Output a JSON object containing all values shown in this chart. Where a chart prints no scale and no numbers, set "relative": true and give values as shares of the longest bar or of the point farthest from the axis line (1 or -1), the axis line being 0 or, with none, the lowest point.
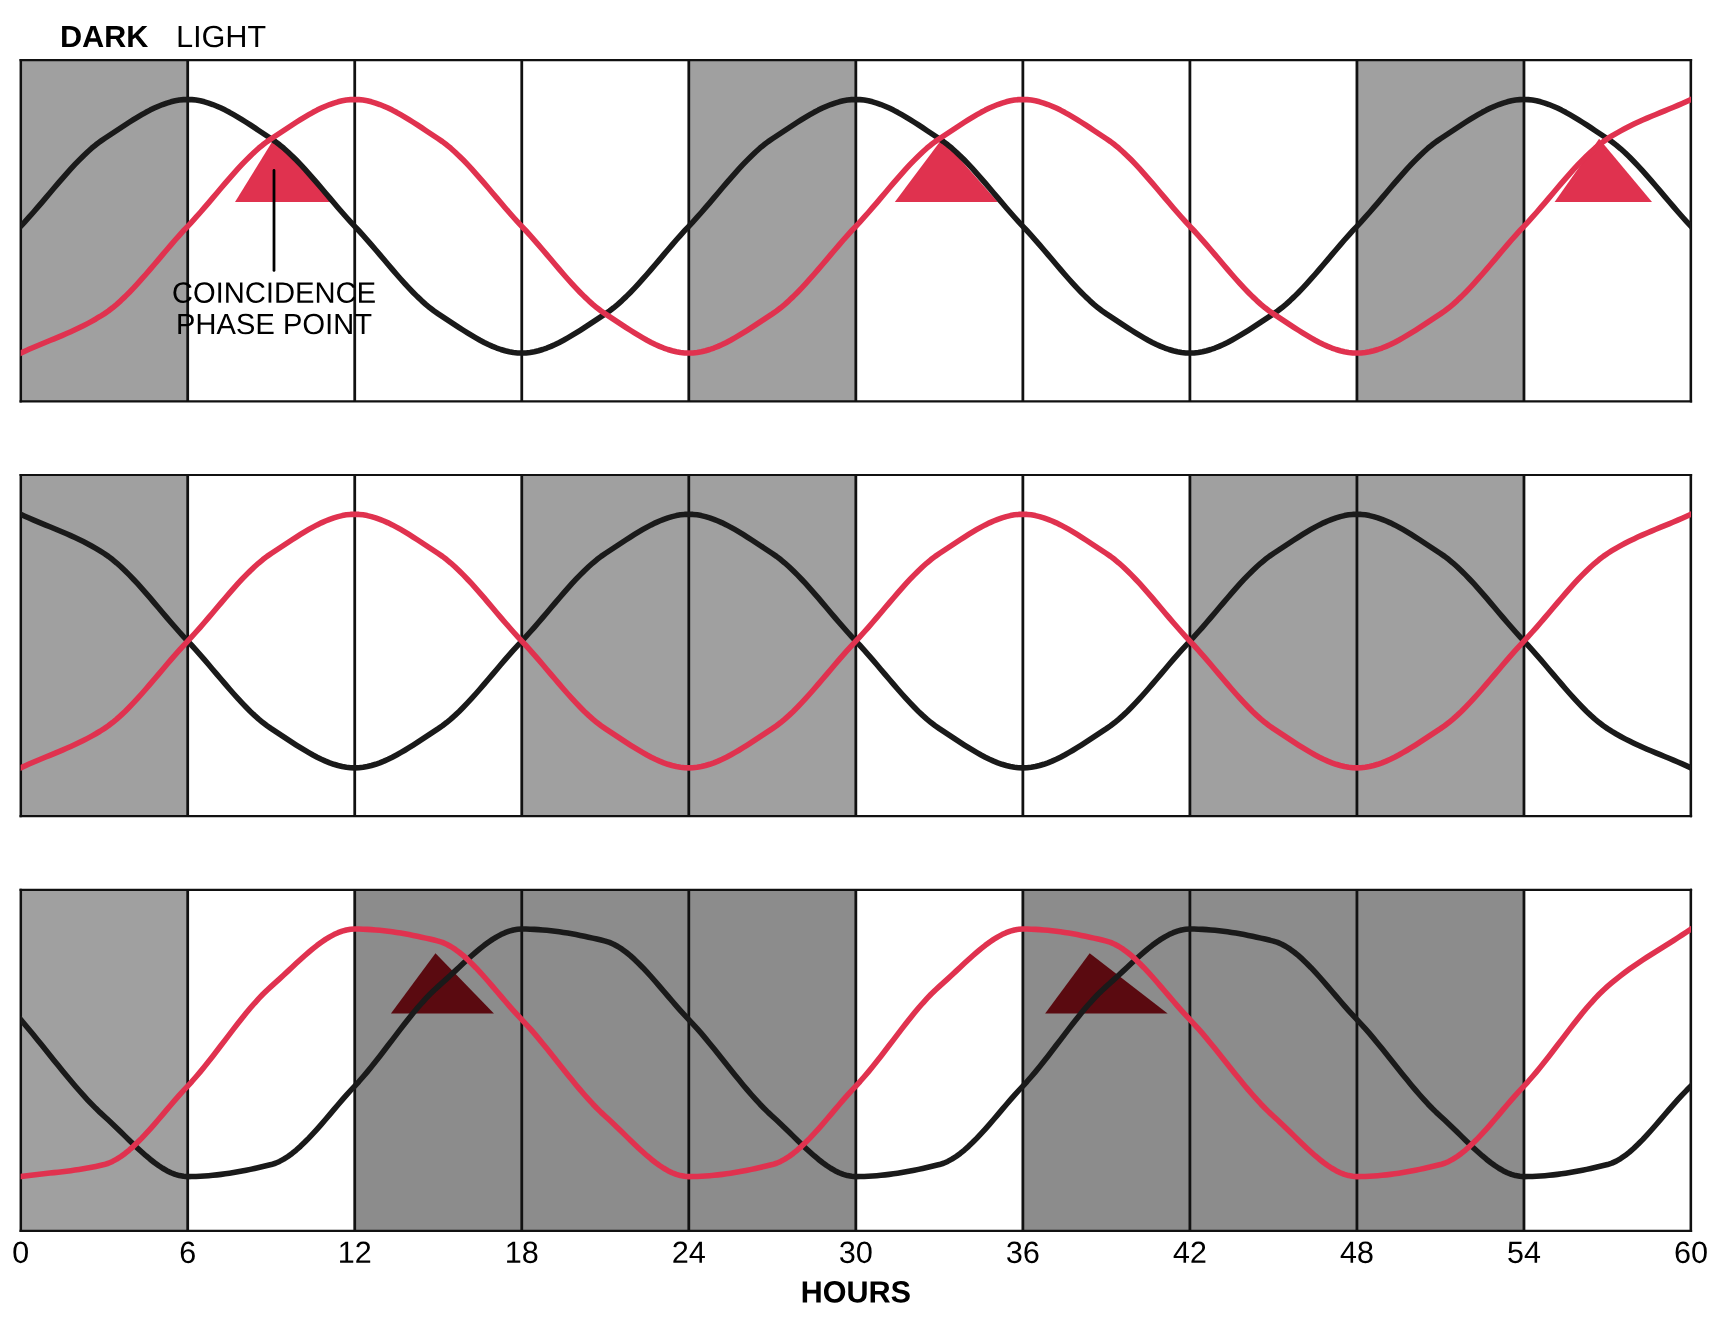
{
  "chart_data": [
    {
      "type": "line",
      "relative": true,
      "xlim": [
        0,
        60
      ],
      "xticks": [
        0,
        6,
        12,
        18,
        24,
        30,
        36,
        42,
        48,
        54,
        60
      ],
      "tick_labels": false,
      "grid": "x",
      "annotations": [
        "LIGHT",
        "COINCIDENCE\nPHASE POINT"
      ],
      "bands": [
        {
          "axis": "x",
          "from": 0,
          "to": 6,
          "label": "DARK",
          "color": "#a0a0a0"
        },
        {
          "axis": "x",
          "from": 24,
          "to": 30,
          "color": "#a0a0a0"
        },
        {
          "axis": "x",
          "from": 48,
          "to": 54,
          "color": "#a0a0a0"
        }
      ],
      "x": [
        0,
        3,
        6,
        9,
        12,
        15,
        18,
        21,
        24,
        27,
        30,
        33,
        36,
        39,
        42,
        45,
        48,
        51,
        54,
        57,
        60
      ],
      "series": [
        {
          "color": "#1a1a1a",
          "values": [
            0.58,
            0.87,
            1,
            0.87,
            0.58,
            0.29,
            0.16,
            0.29,
            0.58,
            0.87,
            1,
            0.87,
            0.58,
            0.29,
            0.16,
            0.29,
            0.58,
            0.87,
            1,
            0.87,
            0.58
          ]
        },
        {
          "color": "#e0324f",
          "values": [
            0.16,
            0.29,
            0.58,
            0.87,
            1,
            0.87,
            0.58,
            0.29,
            0.16,
            0.29,
            0.58,
            0.87,
            1,
            0.87,
            0.58,
            0.29,
            0.16,
            0.29,
            0.58,
            0.87,
            1
          ]
        },
        {
          "type": "area",
          "color": "#e0324f",
          "x": [
            7.7,
            9.1,
            11.2,
            7.7
          ],
          "values": [
            0.66,
            0.87,
            0.66,
            0.66
          ]
        },
        {
          "type": "area",
          "color": "#e0324f",
          "x": [
            31.4,
            33.1,
            35.1,
            31.4
          ],
          "values": [
            0.66,
            0.87,
            0.66,
            0.66
          ]
        },
        {
          "type": "area",
          "color": "#e0324f",
          "x": [
            55.1,
            56.7,
            58.6,
            55.1
          ],
          "values": [
            0.66,
            0.87,
            0.66,
            0.66
          ]
        }
      ]
    },
    {
      "type": "line",
      "relative": true,
      "xlim": [
        0,
        60
      ],
      "xticks": [
        0,
        6,
        12,
        18,
        24,
        30,
        36,
        42,
        48,
        54,
        60
      ],
      "tick_labels": false,
      "grid": "x",
      "bands": [
        {
          "axis": "x",
          "from": 0,
          "to": 6,
          "color": "#a0a0a0"
        },
        {
          "axis": "x",
          "from": 18,
          "to": 30,
          "color": "#a0a0a0"
        },
        {
          "axis": "x",
          "from": 42,
          "to": 54,
          "color": "#a0a0a0"
        }
      ],
      "x": [
        0,
        3,
        6,
        9,
        12,
        15,
        18,
        21,
        24,
        27,
        30,
        33,
        36,
        39,
        42,
        45,
        48,
        51,
        54,
        57,
        60
      ],
      "series": [
        {
          "color": "#1a1a1a",
          "values": [
            1,
            0.87,
            0.58,
            0.29,
            0.16,
            0.29,
            0.58,
            0.87,
            1,
            0.87,
            0.58,
            0.29,
            0.16,
            0.29,
            0.58,
            0.87,
            1,
            0.87,
            0.58,
            0.29,
            0.16
          ]
        },
        {
          "color": "#e0324f",
          "values": [
            0.16,
            0.29,
            0.58,
            0.87,
            1,
            0.87,
            0.58,
            0.29,
            0.16,
            0.29,
            0.58,
            0.87,
            1,
            0.87,
            0.58,
            0.29,
            0.16,
            0.29,
            0.58,
            0.87,
            1
          ]
        }
      ]
    },
    {
      "type": "line",
      "relative": true,
      "xlim": [
        0,
        60
      ],
      "xticks": [
        0,
        6,
        12,
        18,
        24,
        30,
        36,
        42,
        48,
        54,
        60
      ],
      "tick_labels": "x",
      "grid": "x",
      "xlabel": "HOURS",
      "bands": [
        {
          "axis": "x",
          "from": 0,
          "to": 6,
          "color": "#a0a0a0"
        },
        {
          "axis": "x",
          "from": 12,
          "to": 30,
          "color": "#8c8c8c"
        },
        {
          "axis": "x",
          "from": 36,
          "to": 54,
          "color": "#8c8c8c"
        }
      ],
      "x": [
        0,
        3,
        6,
        9,
        12,
        15,
        18,
        21,
        24,
        27,
        30,
        33,
        36,
        39,
        42,
        45,
        48,
        51,
        54,
        57,
        60
      ],
      "series": [
        {
          "color": "#1a1a1a",
          "values": [
            0.7,
            0.38,
            0.18,
            0.22,
            0.48,
            0.81,
            1,
            0.96,
            0.7,
            0.38,
            0.18,
            0.22,
            0.48,
            0.81,
            1,
            0.96,
            0.7,
            0.38,
            0.18,
            0.22,
            0.48
          ]
        },
        {
          "color": "#e0324f",
          "values": [
            0.18,
            0.22,
            0.48,
            0.81,
            1,
            0.96,
            0.7,
            0.38,
            0.18,
            0.22,
            0.48,
            0.81,
            1,
            0.96,
            0.7,
            0.38,
            0.18,
            0.22,
            0.48,
            0.81,
            1
          ]
        },
        {
          "type": "area",
          "color": "#5a0a10",
          "x": [
            13.3,
            14.9,
            17.0,
            13.3
          ],
          "values": [
            0.72,
            0.92,
            0.72,
            0.72
          ]
        },
        {
          "type": "area",
          "color": "#5a0a10",
          "x": [
            36.8,
            38.4,
            41.2,
            36.8
          ],
          "values": [
            0.72,
            0.92,
            0.72,
            0.72
          ]
        }
      ]
    }
  ]
}
